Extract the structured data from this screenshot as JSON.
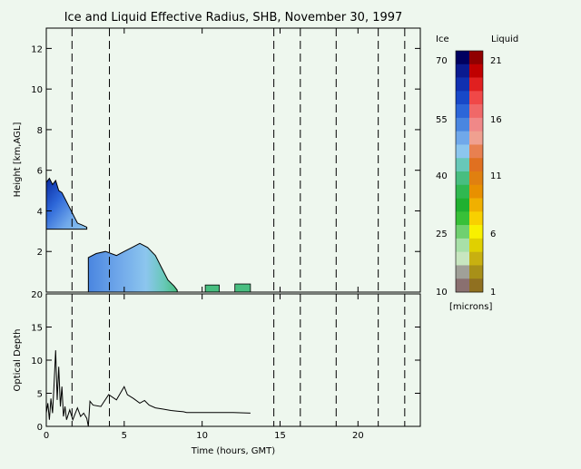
{
  "chart_data": [
    {
      "type": "heatmap",
      "title": "Ice and Liquid Effective Radius, SHB, November 30, 1997",
      "ylabel": "Height [km,AGL]",
      "xlim": [
        0,
        24
      ],
      "ylim": [
        0,
        13
      ],
      "x_ticks": [
        0,
        5,
        10,
        15,
        20
      ],
      "y_ticks": [
        2,
        4,
        6,
        8,
        10,
        12
      ],
      "vertical_dashed_lines_hours": [
        1.65,
        4.05,
        14.6,
        16.3,
        18.6,
        21.3,
        23.0
      ],
      "ice_cloud_top_km": [
        [
          0.0,
          5.4
        ],
        [
          0.2,
          5.6
        ],
        [
          0.4,
          5.3
        ],
        [
          0.6,
          5.5
        ],
        [
          0.8,
          5.0
        ],
        [
          1.0,
          4.9
        ],
        [
          1.2,
          4.6
        ],
        [
          1.4,
          4.3
        ],
        [
          1.6,
          4.0
        ],
        [
          1.8,
          3.7
        ],
        [
          2.0,
          3.4
        ],
        [
          2.3,
          3.3
        ],
        [
          2.6,
          3.2
        ]
      ],
      "ice_cloud_base_km": 3.1,
      "low_cloud_top_km": [
        [
          2.7,
          1.7
        ],
        [
          3.2,
          1.9
        ],
        [
          3.8,
          2.0
        ],
        [
          4.5,
          1.8
        ],
        [
          5.0,
          2.0
        ],
        [
          5.5,
          2.2
        ],
        [
          6.0,
          2.4
        ],
        [
          6.5,
          2.2
        ],
        [
          7.0,
          1.8
        ],
        [
          7.4,
          1.2
        ],
        [
          7.8,
          0.6
        ],
        [
          8.2,
          0.3
        ],
        [
          8.4,
          0.1
        ]
      ],
      "low_cloud_base_km": 0.0,
      "shallow_cloud_segments": [
        {
          "start": 10.2,
          "end": 11.1,
          "top": 0.35
        },
        {
          "start": 12.1,
          "end": 13.1,
          "top": 0.4
        }
      ],
      "colorbar": {
        "ice_label": "Ice",
        "liquid_label": "Liquid",
        "units": "[microns]",
        "ice_ticks": [
          "70",
          "55",
          "40",
          "25",
          "10"
        ],
        "liquid_ticks": [
          "21",
          "16",
          "11",
          "6",
          "1"
        ],
        "ice_colors": [
          "#000060",
          "#0a1a90",
          "#1030b0",
          "#1848c8",
          "#2c66d8",
          "#4a86e0",
          "#70a8ea",
          "#8cc6ee",
          "#68c8b8",
          "#48be80",
          "#30b850",
          "#20b030",
          "#38c038",
          "#70d070",
          "#a8e0a8",
          "#c8e6c0",
          "#a0a098",
          "#8a7070"
        ],
        "liquid_colors": [
          "#900000",
          "#c00000",
          "#e02020",
          "#f04848",
          "#f06868",
          "#f08888",
          "#f0a090",
          "#e88050",
          "#e07020",
          "#e08010",
          "#e89000",
          "#f0b000",
          "#f8d000",
          "#f8f000",
          "#e0d000",
          "#c8b010",
          "#a89018",
          "#907020"
        ]
      }
    },
    {
      "type": "line",
      "xlabel": "Time (hours, GMT)",
      "ylabel": "Optical Depth",
      "xlim": [
        0,
        24
      ],
      "ylim": [
        0,
        20
      ],
      "x_ticks": [
        0,
        5,
        10,
        15,
        20
      ],
      "y_ticks": [
        0,
        5,
        10,
        15,
        20
      ],
      "vertical_dashed_lines_hours": [
        1.65,
        4.05,
        14.6,
        16.3,
        18.6,
        21.3,
        23.0
      ],
      "series": [
        {
          "values": [
            [
              0.0,
              2.0
            ],
            [
              0.1,
              3.5
            ],
            [
              0.2,
              1.0
            ],
            [
              0.3,
              4.2
            ],
            [
              0.4,
              2.0
            ],
            [
              0.5,
              6.5
            ],
            [
              0.6,
              11.5
            ],
            [
              0.7,
              4.0
            ],
            [
              0.8,
              9.0
            ],
            [
              0.9,
              3.0
            ],
            [
              1.0,
              6.0
            ],
            [
              1.1,
              1.5
            ],
            [
              1.2,
              3.0
            ],
            [
              1.3,
              1.0
            ],
            [
              1.5,
              2.5
            ],
            [
              1.7,
              1.0
            ],
            [
              2.0,
              2.8
            ],
            [
              2.2,
              1.5
            ],
            [
              2.4,
              2.0
            ],
            [
              2.6,
              1.2
            ],
            [
              2.7,
              0.0
            ],
            [
              2.8,
              3.8
            ],
            [
              3.0,
              3.2
            ],
            [
              3.5,
              3.0
            ],
            [
              4.0,
              4.8
            ],
            [
              4.5,
              4.0
            ],
            [
              4.8,
              5.2
            ],
            [
              5.0,
              6.0
            ],
            [
              5.2,
              4.8
            ],
            [
              5.6,
              4.2
            ],
            [
              6.0,
              3.5
            ],
            [
              6.3,
              3.9
            ],
            [
              6.6,
              3.2
            ],
            [
              7.0,
              2.8
            ],
            [
              7.5,
              2.6
            ],
            [
              8.0,
              2.4
            ],
            [
              8.4,
              2.3
            ],
            [
              8.8,
              2.2
            ],
            [
              9.0,
              2.1
            ],
            [
              9.5,
              2.1
            ],
            [
              10.0,
              2.1
            ],
            [
              12.0,
              2.1
            ],
            [
              13.1,
              2.0
            ]
          ]
        }
      ]
    }
  ]
}
